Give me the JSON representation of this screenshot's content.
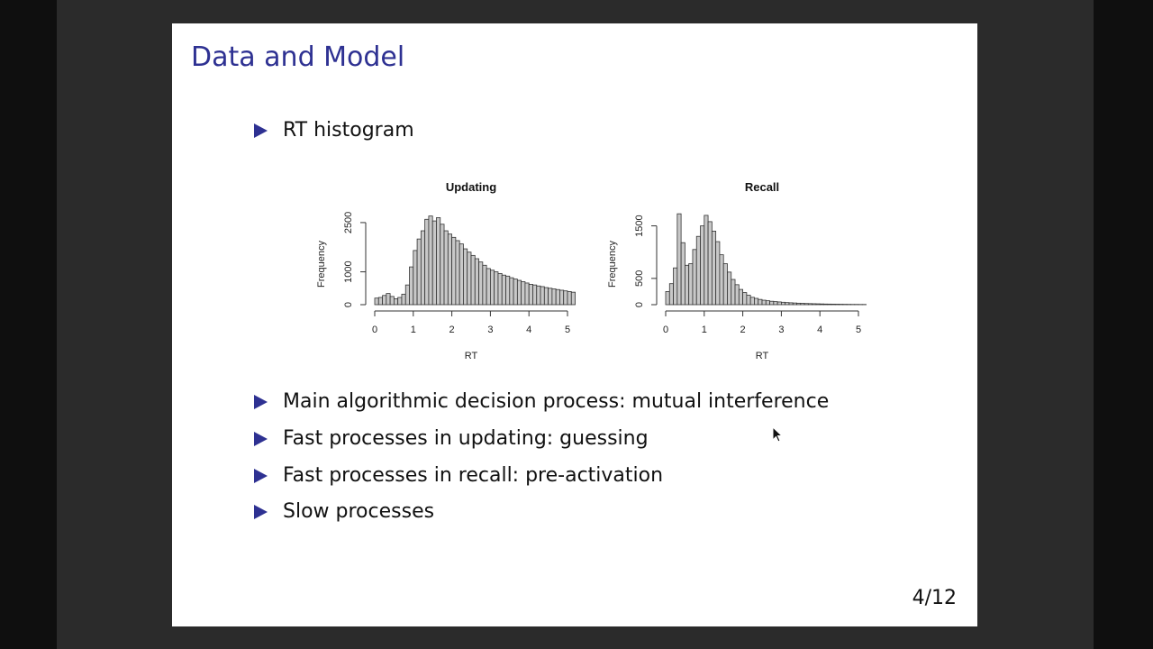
{
  "slide": {
    "title": "Data and Model",
    "bullet_top": "RT histogram",
    "bullets": [
      "Main algorithmic decision process: mutual interference",
      "Fast processes in updating: guessing",
      "Fast processes in recall: pre-activation",
      "Slow processes"
    ],
    "page_number": "4/12"
  },
  "colors": {
    "accent": "#2e3192",
    "bar_fill": "#c8c8c8"
  },
  "chart_data": [
    {
      "type": "bar",
      "title": "Updating",
      "xlabel": "RT",
      "ylabel": "Frequency",
      "xlim": [
        0,
        5.2
      ],
      "ylim": [
        0,
        2800
      ],
      "xticks": [
        0,
        1,
        2,
        3,
        4,
        5
      ],
      "yticks": [
        0,
        1000,
        2500
      ],
      "bin_width": 0.1,
      "x_start": 0,
      "values": [
        200,
        220,
        280,
        340,
        250,
        180,
        220,
        320,
        600,
        1150,
        1650,
        2000,
        2250,
        2600,
        2700,
        2550,
        2650,
        2450,
        2250,
        2150,
        2050,
        1950,
        1850,
        1700,
        1600,
        1500,
        1400,
        1300,
        1200,
        1100,
        1050,
        1000,
        950,
        900,
        870,
        820,
        780,
        740,
        700,
        660,
        620,
        600,
        570,
        550,
        520,
        500,
        480,
        460,
        440,
        420,
        400,
        380
      ]
    },
    {
      "type": "bar",
      "title": "Recall",
      "xlabel": "RT",
      "ylabel": "Frequency",
      "xlim": [
        0,
        5.2
      ],
      "ylim": [
        0,
        1750
      ],
      "xticks": [
        0,
        1,
        2,
        3,
        4,
        5
      ],
      "yticks": [
        0,
        500,
        1500
      ],
      "bin_width": 0.1,
      "x_start": 0,
      "values": [
        250,
        400,
        700,
        1730,
        1180,
        750,
        780,
        1050,
        1300,
        1500,
        1700,
        1580,
        1400,
        1200,
        950,
        780,
        620,
        480,
        380,
        290,
        230,
        180,
        140,
        120,
        100,
        85,
        75,
        65,
        58,
        52,
        46,
        40,
        36,
        32,
        28,
        25,
        22,
        20,
        18,
        16,
        14,
        12,
        11,
        10,
        9,
        8,
        7,
        6,
        5,
        5,
        4,
        4
      ]
    }
  ]
}
